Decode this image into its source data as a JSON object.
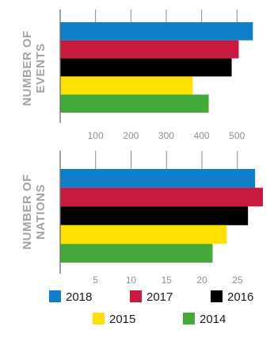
{
  "colors": {
    "2018": "#0f7fc9",
    "2017": "#c8193e",
    "2016": "#000000",
    "2015": "#ffe100",
    "2014": "#43aa3a",
    "axis": "#6d6d6d",
    "tick_text": "#8f8f8f",
    "label_text": "#a3a3a3"
  },
  "chart_data": [
    {
      "type": "bar",
      "orientation": "horizontal",
      "ylabel": [
        "NUMBER OF",
        "EVENTS"
      ],
      "series": [
        {
          "name": "2018",
          "value": 545
        },
        {
          "name": "2017",
          "value": 505
        },
        {
          "name": "2016",
          "value": 485
        },
        {
          "name": "2015",
          "value": 375
        },
        {
          "name": "2014",
          "value": 420
        }
      ],
      "xlim": [
        0,
        550
      ],
      "ticks": [
        100,
        200,
        300,
        400,
        500
      ],
      "tick_labels": [
        "100",
        "200",
        "300",
        "400",
        "500"
      ],
      "grid": true
    },
    {
      "type": "bar",
      "orientation": "horizontal",
      "ylabel": [
        "NUMBER OF",
        "NATIONS"
      ],
      "series": [
        {
          "name": "2018",
          "value": 27.5
        },
        {
          "name": "2017",
          "value": 28.6
        },
        {
          "name": "2016",
          "value": 26.5
        },
        {
          "name": "2015",
          "value": 23.5
        },
        {
          "name": "2014",
          "value": 21.5
        }
      ],
      "xlim": [
        0,
        29
      ],
      "ticks": [
        5,
        10,
        15,
        20,
        25
      ],
      "tick_labels": [
        "5",
        "10",
        "15",
        "20",
        "25"
      ],
      "grid": true
    }
  ],
  "legend": [
    {
      "label": "2018",
      "color": "#0f7fc9"
    },
    {
      "label": "2017",
      "color": "#c8193e"
    },
    {
      "label": "2016",
      "color": "#000000"
    },
    {
      "label": "2015",
      "color": "#ffe100"
    },
    {
      "label": "2014",
      "color": "#43aa3a"
    }
  ]
}
